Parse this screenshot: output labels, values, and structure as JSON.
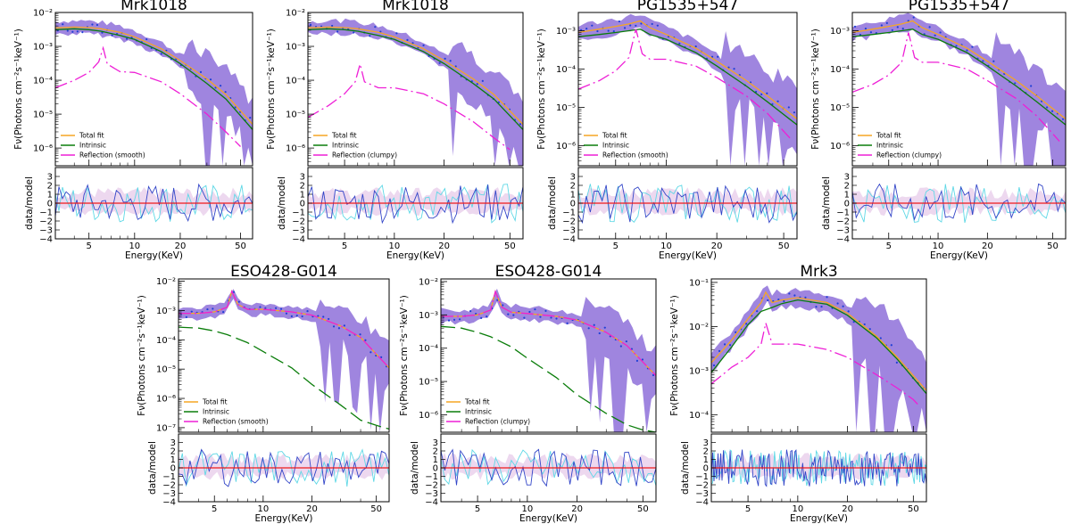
{
  "chart_data": [
    {
      "type": "line",
      "title": "Mrk1018",
      "xlabel": "Energy(KeV)",
      "ylabel_top": "Fν(Photons cm⁻²s⁻¹keV⁻¹)",
      "ylabel_bottom": "data/model",
      "x_scale": "log",
      "xlim": [
        3,
        60
      ],
      "y_scale": "log",
      "ylim": [
        3e-07,
        0.01
      ],
      "ratio_ylim": [
        -4,
        4
      ],
      "xticks": [
        5,
        10,
        20,
        50
      ],
      "yticks": [
        {
          "value": 0.01,
          "label": "10⁻²"
        },
        {
          "value": 0.001,
          "label": "10⁻³"
        },
        {
          "value": 0.0001,
          "label": "10⁻⁴"
        },
        {
          "value": 1e-05,
          "label": "10⁻⁵"
        },
        {
          "value": 1e-06,
          "label": "10⁻⁶"
        }
      ],
      "legend": [
        "Total fit",
        "Intrinsic",
        "Reflection (smooth)"
      ],
      "legend_position": "bottom-left",
      "series": [
        {
          "name": "Total fit",
          "x": [
            3,
            4,
            5,
            6,
            8,
            10,
            15,
            20,
            30,
            40,
            60
          ],
          "y": [
            0.0035,
            0.0037,
            0.0036,
            0.0033,
            0.0026,
            0.0019,
            0.00085,
            0.00038,
            0.00011,
            3.8e-05,
            5e-06
          ]
        },
        {
          "name": "Intrinsic",
          "x": [
            3,
            4,
            5,
            6,
            8,
            10,
            15,
            20,
            30,
            40,
            60
          ],
          "y": [
            0.0031,
            0.0033,
            0.0031,
            0.0028,
            0.0021,
            0.0016,
            0.0007,
            0.00031,
            8e-05,
            2.8e-05,
            3.5e-06
          ]
        },
        {
          "name": "Reflection (smooth)",
          "x": [
            3,
            4,
            5,
            5.8,
            6.2,
            6.6,
            8,
            10,
            15,
            20,
            30,
            40,
            50
          ],
          "y": [
            6e-05,
            0.0001,
            0.00017,
            0.00035,
            0.0009,
            0.0003,
            0.00018,
            0.00017,
            9e-05,
            4e-05,
            1e-05,
            3e-06,
            1.1e-06
          ]
        }
      ]
    },
    {
      "type": "line",
      "title": "Mrk1018",
      "xlabel": "Energy(KeV)",
      "ylabel_top": "Fν(Photons cm⁻²s⁻¹keV⁻¹)",
      "ylabel_bottom": "data/model",
      "x_scale": "log",
      "xlim": [
        3,
        60
      ],
      "y_scale": "log",
      "ylim": [
        3e-07,
        0.01
      ],
      "ratio_ylim": [
        -4,
        4
      ],
      "xticks": [
        5,
        10,
        20,
        50
      ],
      "yticks": [
        {
          "value": 0.01,
          "label": "10⁻²"
        },
        {
          "value": 0.001,
          "label": "10⁻³"
        },
        {
          "value": 0.0001,
          "label": "10⁻⁴"
        },
        {
          "value": 1e-05,
          "label": "10⁻⁵"
        },
        {
          "value": 1e-06,
          "label": "10⁻⁶"
        }
      ],
      "legend": [
        "Total fit",
        "Intrinsic",
        "Reflection (clumpy)"
      ],
      "legend_position": "bottom-left",
      "series": [
        {
          "name": "Total fit",
          "x": [
            3,
            4,
            5,
            6,
            8,
            10,
            15,
            20,
            30,
            40,
            60
          ],
          "y": [
            0.0035,
            0.0037,
            0.0036,
            0.0033,
            0.0026,
            0.0019,
            0.00085,
            0.00038,
            0.00011,
            3.8e-05,
            5e-06
          ]
        },
        {
          "name": "Intrinsic",
          "x": [
            3,
            4,
            5,
            6,
            8,
            10,
            15,
            20,
            30,
            40,
            60
          ],
          "y": [
            0.0031,
            0.0033,
            0.0031,
            0.0028,
            0.0021,
            0.0016,
            0.0007,
            0.00031,
            8e-05,
            2.8e-05,
            3.5e-06
          ]
        },
        {
          "name": "Reflection (clumpy)",
          "x": [
            3,
            4,
            5,
            5.8,
            6.2,
            6.6,
            8,
            10,
            15,
            20,
            30,
            40,
            50
          ],
          "y": [
            8e-06,
            1.8e-05,
            4e-05,
            9e-05,
            0.0003,
            9e-05,
            6e-05,
            6e-05,
            4e-05,
            2e-05,
            6e-06,
            2e-06,
            9e-07
          ]
        }
      ]
    },
    {
      "type": "line",
      "title": "PG1535+547",
      "xlabel": "Energy(KeV)",
      "ylabel_top": "Fν(Photons cm⁻²s⁻¹keV⁻¹)",
      "ylabel_bottom": "data/model",
      "x_scale": "log",
      "xlim": [
        3,
        60
      ],
      "y_scale": "log",
      "ylim": [
        3e-07,
        0.003
      ],
      "ratio_ylim": [
        -4,
        4
      ],
      "xticks": [
        5,
        10,
        20,
        50
      ],
      "yticks": [
        {
          "value": 0.001,
          "label": "10⁻³"
        },
        {
          "value": 0.0001,
          "label": "10⁻⁴"
        },
        {
          "value": 1e-05,
          "label": "10⁻⁵"
        },
        {
          "value": 1e-06,
          "label": "10⁻⁶"
        }
      ],
      "legend": [
        "Total fit",
        "Intrinsic",
        "Reflection (smooth)"
      ],
      "legend_position": "bottom-left",
      "series": [
        {
          "name": "Total fit",
          "x": [
            3,
            4,
            5,
            6,
            7,
            8,
            10,
            15,
            20,
            30,
            40,
            60
          ],
          "y": [
            0.0009,
            0.0011,
            0.0013,
            0.0015,
            0.0018,
            0.0012,
            0.0008,
            0.00035,
            0.00016,
            5e-05,
            2e-05,
            5e-06
          ]
        },
        {
          "name": "Intrinsic",
          "x": [
            3,
            4,
            5,
            6,
            7,
            8,
            10,
            15,
            20,
            30,
            40,
            60
          ],
          "y": [
            0.0007,
            0.0008,
            0.0009,
            0.001,
            0.0011,
            0.0008,
            0.0006,
            0.00027,
            0.00012,
            3.6e-05,
            1.4e-05,
            3.5e-06
          ]
        },
        {
          "name": "Reflection (smooth)",
          "x": [
            3,
            4,
            5,
            6,
            6.6,
            7.2,
            8,
            10,
            15,
            20,
            30,
            40,
            55
          ],
          "y": [
            3e-05,
            5e-05,
            9e-05,
            0.0002,
            0.0011,
            0.00025,
            0.00018,
            0.00018,
            0.00012,
            6e-05,
            2e-05,
            7e-06,
            1.5e-06
          ]
        }
      ]
    },
    {
      "type": "line",
      "title": "PG1535+547",
      "xlabel": "Energy(KeV)",
      "ylabel_top": "Fν(Photons cm⁻²s⁻¹keV⁻¹)",
      "ylabel_bottom": "data/model",
      "x_scale": "log",
      "xlim": [
        3,
        60
      ],
      "y_scale": "log",
      "ylim": [
        3e-07,
        0.003
      ],
      "ratio_ylim": [
        -4,
        4
      ],
      "xticks": [
        5,
        10,
        20,
        50
      ],
      "yticks": [
        {
          "value": 0.001,
          "label": "10⁻³"
        },
        {
          "value": 0.0001,
          "label": "10⁻⁴"
        },
        {
          "value": 1e-05,
          "label": "10⁻⁵"
        },
        {
          "value": 1e-06,
          "label": "10⁻⁶"
        }
      ],
      "legend": [
        "Total fit",
        "Intrinsic",
        "Reflection (clumpy)"
      ],
      "legend_position": "bottom-left",
      "series": [
        {
          "name": "Total fit",
          "x": [
            3,
            4,
            5,
            6,
            7,
            8,
            10,
            15,
            20,
            30,
            40,
            60
          ],
          "y": [
            0.0009,
            0.0011,
            0.0013,
            0.0015,
            0.0018,
            0.0012,
            0.0008,
            0.00035,
            0.00016,
            5e-05,
            2e-05,
            5e-06
          ]
        },
        {
          "name": "Intrinsic",
          "x": [
            3,
            4,
            5,
            6,
            7,
            8,
            10,
            15,
            20,
            30,
            40,
            60
          ],
          "y": [
            0.0007,
            0.0008,
            0.0009,
            0.001,
            0.0011,
            0.0008,
            0.0006,
            0.00027,
            0.00012,
            3.6e-05,
            1.4e-05,
            3.5e-06
          ]
        },
        {
          "name": "Reflection (clumpy)",
          "x": [
            3,
            4,
            5,
            6,
            6.6,
            7.2,
            8,
            10,
            15,
            20,
            30,
            40,
            55
          ],
          "y": [
            2.5e-05,
            4e-05,
            7e-05,
            0.00015,
            0.0009,
            0.0002,
            0.00015,
            0.00015,
            0.0001,
            5e-05,
            1.7e-05,
            6e-06,
            1.3e-06
          ]
        }
      ]
    },
    {
      "type": "line",
      "title": "ESO428-G014",
      "xlabel": "Energy(KeV)",
      "ylabel_top": "Fν(Photons cm⁻²s⁻¹keV⁻¹)",
      "ylabel_bottom": "data/model",
      "x_scale": "log",
      "xlim": [
        3,
        60
      ],
      "y_scale": "log",
      "ylim": [
        7e-08,
        0.012
      ],
      "ratio_ylim": [
        -4,
        4
      ],
      "xticks": [
        5,
        10,
        20,
        50
      ],
      "yticks": [
        {
          "value": 0.01,
          "label": "10⁻²"
        },
        {
          "value": 0.001,
          "label": "10⁻³"
        },
        {
          "value": 0.0001,
          "label": "10⁻⁴"
        },
        {
          "value": 1e-05,
          "label": "10⁻⁵"
        },
        {
          "value": 1e-06,
          "label": "10⁻⁶"
        },
        {
          "value": 1e-07,
          "label": "10⁻⁷"
        }
      ],
      "legend": [
        "Total fit",
        "Intrinsic",
        "Reflection (smooth)"
      ],
      "legend_position": "bottom-left",
      "series": [
        {
          "name": "Total fit",
          "x": [
            3,
            4,
            5,
            6,
            6.4,
            7,
            8,
            10,
            15,
            20,
            30,
            40,
            60
          ],
          "y": [
            0.0008,
            0.0008,
            0.0009,
            0.0013,
            0.0045,
            0.0016,
            0.0011,
            0.0011,
            0.0009,
            0.0007,
            0.0003,
            0.00012,
            1.1e-05
          ]
        },
        {
          "name": "Intrinsic",
          "x": [
            3,
            4,
            5,
            6,
            8,
            10,
            15,
            20,
            30,
            40,
            50,
            60
          ],
          "y": [
            0.00027,
            0.00025,
            0.0002,
            0.00015,
            8e-05,
            4e-05,
            1.1e-05,
            3e-06,
            6e-07,
            1.8e-07,
            1.2e-07,
            9e-08
          ]
        },
        {
          "name": "Reflection (smooth)",
          "x": [
            3,
            4,
            5,
            6,
            6.4,
            7,
            8,
            10,
            15,
            20,
            30,
            40,
            60
          ],
          "y": [
            0.0008,
            0.0008,
            0.0009,
            0.0013,
            0.0045,
            0.0016,
            0.0011,
            0.0011,
            0.0009,
            0.0007,
            0.0003,
            0.00012,
            1.1e-05
          ]
        }
      ]
    },
    {
      "type": "line",
      "title": "ESO428-G014",
      "xlabel": "Energy(KeV)",
      "ylabel_top": "Fν(Photons cm⁻²s⁻¹keV⁻¹)",
      "ylabel_bottom": "data/model",
      "x_scale": "log",
      "xlim": [
        3,
        60
      ],
      "y_scale": "log",
      "ylim": [
        3e-07,
        0.012
      ],
      "ratio_ylim": [
        -4,
        4
      ],
      "xticks": [
        5,
        10,
        20,
        50
      ],
      "yticks": [
        {
          "value": 0.01,
          "label": "10⁻²"
        },
        {
          "value": 0.001,
          "label": "10⁻³"
        },
        {
          "value": 0.0001,
          "label": "10⁻⁴"
        },
        {
          "value": 1e-05,
          "label": "10⁻⁵"
        },
        {
          "value": 1e-06,
          "label": "10⁻⁶"
        }
      ],
      "legend": [
        "Total fit",
        "Intrinsic",
        "Reflection (clumpy)"
      ],
      "legend_position": "bottom-left",
      "series": [
        {
          "name": "Total fit",
          "x": [
            3,
            4,
            5,
            6,
            6.4,
            7,
            8,
            10,
            15,
            20,
            30,
            40,
            60
          ],
          "y": [
            0.0009,
            0.0009,
            0.001,
            0.0014,
            0.005,
            0.0017,
            0.0012,
            0.0011,
            0.0009,
            0.0007,
            0.0003,
            0.00012,
            1.5e-05
          ]
        },
        {
          "name": "Intrinsic",
          "x": [
            3,
            4,
            5,
            6,
            8,
            10,
            15,
            20,
            30,
            40,
            50,
            60
          ],
          "y": [
            0.00045,
            0.0004,
            0.0003,
            0.00022,
            0.00011,
            5e-05,
            1.3e-05,
            4e-06,
            1.1e-06,
            5e-07,
            3.5e-07,
            3e-07
          ]
        },
        {
          "name": "Reflection (clumpy)",
          "x": [
            3,
            4,
            5,
            6,
            6.4,
            7,
            8,
            10,
            15,
            20,
            30,
            40,
            60
          ],
          "y": [
            0.0009,
            0.0009,
            0.001,
            0.0014,
            0.005,
            0.0017,
            0.0012,
            0.0011,
            0.0009,
            0.0007,
            0.0003,
            0.00012,
            1.5e-05
          ]
        }
      ]
    },
    {
      "type": "line",
      "title": "Mrk3",
      "xlabel": "Energy(KeV)",
      "ylabel_top": "Fν(Photons cm⁻²s⁻¹keV⁻¹)",
      "ylabel_bottom": "data/model",
      "x_scale": "log",
      "xlim": [
        3,
        60
      ],
      "y_scale": "log",
      "ylim": [
        4e-05,
        0.12
      ],
      "ratio_ylim": [
        -4,
        4
      ],
      "xticks": [
        5,
        10,
        20,
        50
      ],
      "yticks": [
        {
          "value": 0.1,
          "label": "10⁻¹"
        },
        {
          "value": 0.01,
          "label": "10⁻²"
        },
        {
          "value": 0.001,
          "label": "10⁻³"
        },
        {
          "value": 0.0001,
          "label": "10⁻⁴"
        }
      ],
      "legend": [],
      "series": [
        {
          "name": "Total fit",
          "x": [
            3,
            4,
            5,
            6,
            6.4,
            7,
            8,
            10,
            15,
            20,
            30,
            40,
            60
          ],
          "y": [
            0.0015,
            0.005,
            0.015,
            0.035,
            0.06,
            0.035,
            0.04,
            0.045,
            0.035,
            0.02,
            0.006,
            0.002,
            0.00035
          ]
        },
        {
          "name": "Intrinsic",
          "x": [
            3,
            4,
            5,
            6,
            7,
            8,
            10,
            15,
            20,
            30,
            40,
            60
          ],
          "y": [
            0.0009,
            0.0035,
            0.011,
            0.022,
            0.027,
            0.033,
            0.04,
            0.032,
            0.018,
            0.0055,
            0.0018,
            0.0003
          ]
        },
        {
          "name": "Reflection",
          "x": [
            3,
            4,
            5,
            6,
            6.4,
            7,
            8,
            10,
            15,
            20,
            30,
            40,
            50,
            55
          ],
          "y": [
            0.0005,
            0.0012,
            0.002,
            0.004,
            0.012,
            0.004,
            0.004,
            0.004,
            0.003,
            0.002,
            0.0008,
            0.0004,
            0.00022,
            0.00015
          ]
        }
      ]
    }
  ],
  "style": {
    "total_color": "#f5a623",
    "intrinsic_color": "#0a7d0a",
    "reflection_color": "#ee1fd6",
    "band_color": "#8a6ad8",
    "data_color": "#1f3fd6",
    "residual_light": "#5fd8e6",
    "residual_dark": "#3346c8",
    "residual_pink": "#d8a8dc",
    "zero_line": "#ee1a1a"
  }
}
